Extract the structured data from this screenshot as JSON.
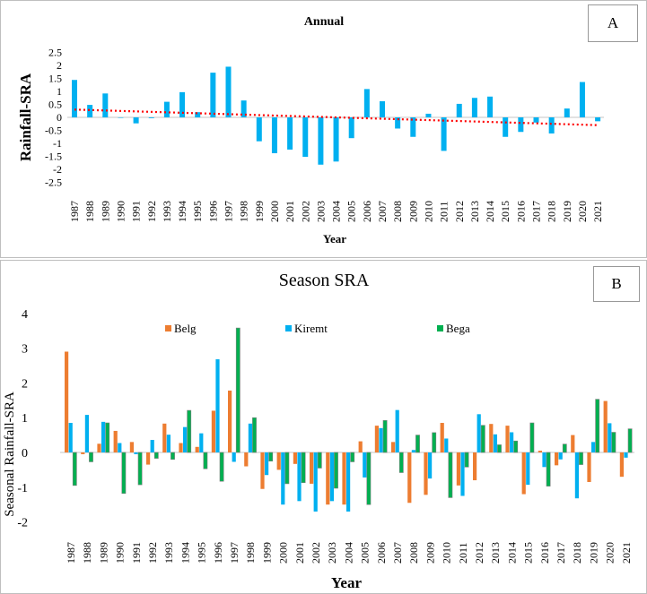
{
  "chart_data": [
    {
      "type": "bar",
      "panel_label": "A",
      "title": "Annual",
      "xlabel": "Year",
      "ylabel": "Rainfall-SRA",
      "ylim": [
        -2.5,
        2.5
      ],
      "yticks": [
        "2.5",
        "2",
        "1.5",
        "1",
        "0.5",
        "0",
        "-0.5",
        "-1",
        "-1.5",
        "-2",
        "-2.5"
      ],
      "categories": [
        "1987",
        "1988",
        "1989",
        "1990",
        "1991",
        "1992",
        "1993",
        "1994",
        "1995",
        "1996",
        "1997",
        "1998",
        "1999",
        "2000",
        "2001",
        "2002",
        "2003",
        "2004",
        "2005",
        "2006",
        "2007",
        "2008",
        "2009",
        "2010",
        "2011",
        "2012",
        "2013",
        "2014",
        "2015",
        "2016",
        "2017",
        "2018",
        "2019",
        "2020",
        "2021"
      ],
      "values": [
        1.44,
        0.48,
        0.92,
        0,
        -0.23,
        -0.03,
        0.6,
        0.97,
        0.2,
        1.72,
        1.95,
        0.65,
        -0.92,
        -1.38,
        -1.24,
        -1.52,
        -1.82,
        -1.7,
        -0.8,
        1.09,
        0.62,
        -0.43,
        -0.75,
        0.14,
        -1.29,
        0.52,
        0.75,
        0.8,
        -0.75,
        -0.56,
        -0.2,
        -0.62,
        0.34,
        1.36,
        -0.15
      ],
      "trendline": {
        "start": 0.3,
        "end": -0.3,
        "style": "dotted",
        "color": "#ff0000"
      },
      "bar_color": "#00b0f0"
    },
    {
      "type": "bar",
      "panel_label": "B",
      "title": "Season SRA",
      "xlabel": "Year",
      "ylabel": "Seasonal Rainfall-SRA",
      "ylim": [
        -2,
        4
      ],
      "yticks": [
        "4",
        "3",
        "2",
        "1",
        "0",
        "-1",
        "-2"
      ],
      "legend_position": "top",
      "categories": [
        "1987",
        "1988",
        "1989",
        "1990",
        "1991",
        "1992",
        "1993",
        "1994",
        "1995",
        "1996",
        "1997",
        "1998",
        "1999",
        "2000",
        "2001",
        "2002",
        "2003",
        "2004",
        "2005",
        "2006",
        "2007",
        "2008",
        "2009",
        "2010",
        "2011",
        "2012",
        "2013",
        "2014",
        "2015",
        "2016",
        "2017",
        "2018",
        "2019",
        "2020",
        "2021"
      ],
      "series": [
        {
          "name": "Belg",
          "color": "#ed7d31",
          "values": [
            2.9,
            -0.05,
            0.25,
            0.62,
            0.3,
            -0.35,
            0.83,
            0.27,
            0.16,
            1.2,
            1.78,
            -0.4,
            -1.05,
            -0.5,
            -0.33,
            -0.9,
            -1.5,
            -1.5,
            0.32,
            0.77,
            0.3,
            -1.45,
            -1.22,
            0.85,
            -0.95,
            -0.8,
            0.82,
            0.77,
            -1.2,
            0.05,
            -0.37,
            0.5,
            -0.85,
            1.48,
            -0.7
          ]
        },
        {
          "name": "Kiremt",
          "color": "#00b0f0",
          "values": [
            0.85,
            1.08,
            0.88,
            0.27,
            -0.05,
            0.36,
            0.51,
            0.73,
            0.55,
            2.68,
            -0.27,
            0.83,
            -0.65,
            -1.5,
            -1.4,
            -1.7,
            -1.4,
            -1.7,
            -0.72,
            0.7,
            1.22,
            0.07,
            -0.75,
            0.4,
            -1.25,
            1.1,
            0.52,
            0.58,
            -0.93,
            -0.42,
            -0.2,
            -1.32,
            0.3,
            0.84,
            -0.15
          ]
        },
        {
          "name": "Bega",
          "color": "#00b050",
          "values": [
            -0.95,
            -0.27,
            0.85,
            -1.18,
            -0.93,
            -0.17,
            -0.2,
            1.21,
            -0.47,
            -0.83,
            3.58,
            1.0,
            -0.25,
            -0.9,
            -0.87,
            -0.45,
            -1.03,
            -0.27,
            -1.5,
            0.92,
            -0.58,
            0.5,
            0.57,
            -1.3,
            -0.42,
            0.78,
            0.22,
            0.33,
            0.85,
            -0.97,
            0.24,
            -0.35,
            1.53,
            0.58,
            0.68
          ]
        }
      ]
    }
  ]
}
